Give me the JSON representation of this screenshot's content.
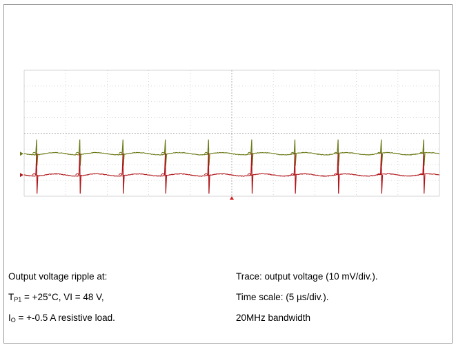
{
  "chart_data": {
    "type": "line",
    "title": "",
    "xlabel": "",
    "ylabel": "",
    "grid": true,
    "x_divisions": 10,
    "y_divisions": 8,
    "time_per_div_us": 5,
    "volts_per_div_mV": 10,
    "pulse_times_us": [
      1.5,
      6.7,
      11.9,
      17.0,
      22.2,
      27.4,
      32.6,
      37.8,
      43.0,
      48.1
    ],
    "series": [
      {
        "trace": "upper",
        "color": "#6b7a18",
        "baseline_div": 2.7,
        "pulse_times_us": [
          1.5,
          6.7,
          11.9,
          17.0,
          22.2,
          27.4,
          32.6,
          37.8,
          43.0,
          48.1
        ],
        "spike_amplitude_mV": 9
      },
      {
        "trace": "lower",
        "color": "#b0171b",
        "baseline_div": 1.35,
        "pulse_times_us": [
          1.5,
          6.7,
          11.9,
          17.0,
          22.2,
          27.4,
          32.6,
          37.8,
          43.0,
          48.1
        ],
        "spike_amplitude_mV": 14
      }
    ]
  },
  "caption_left": {
    "line1": "Output voltage ripple  at:",
    "line2_T": "T",
    "line2_sub": "P1",
    "line2_rest": " = +25°C, VI = 48 V,",
    "line3_I": "I",
    "line3_sub": "O",
    "line3_rest": " = +-0.5 A resistive load."
  },
  "caption_right": {
    "line1": "Trace: output voltage (10 mV/div.).",
    "line2": "Time scale: (5 µs/div.).",
    "line3": "20MHz bandwidth"
  },
  "colors": {
    "grid": "#c8c8c8",
    "grid_center": "#9a9a9a",
    "trigger_marker": "#d42020"
  }
}
